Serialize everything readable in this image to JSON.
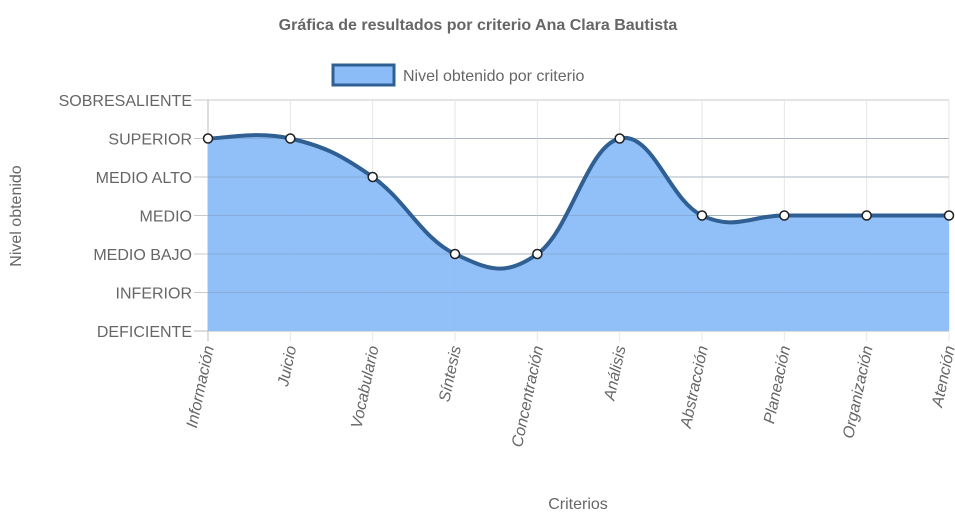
{
  "chart_data": {
    "type": "area",
    "title": "Gráfica de resultados por criterio Ana Clara Bautista",
    "xlabel": "Criterios",
    "ylabel": "Nivel obtenido",
    "categories": [
      "Información",
      "Juicio",
      "Vocabulario",
      "Síntesis",
      "Concentración",
      "Análisis",
      "Abstracción",
      "Planeación",
      "Organización",
      "Atención"
    ],
    "y_levels": [
      "DEFICIENTE",
      "INFERIOR",
      "MEDIO BAJO",
      "MEDIO",
      "MEDIO ALTO",
      "SUPERIOR",
      "SOBRESALIENTE"
    ],
    "ylim": [
      0,
      6
    ],
    "grid": true,
    "legend_position": "top",
    "series": [
      {
        "name": "Nivel obtenido por criterio",
        "values": [
          5,
          5,
          4,
          2,
          2,
          5,
          3,
          3,
          3,
          3
        ],
        "fill_color": "#8bbcf8",
        "line_color": "#2f5f93",
        "point_color": "#ffffff"
      }
    ]
  }
}
